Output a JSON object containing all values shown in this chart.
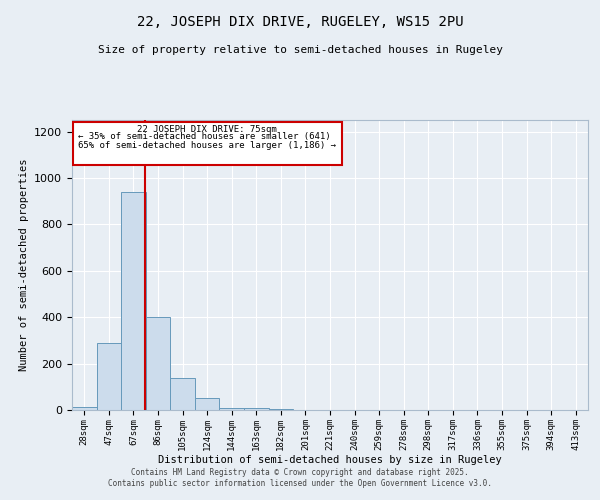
{
  "title_line1": "22, JOSEPH DIX DRIVE, RUGELEY, WS15 2PU",
  "title_line2": "Size of property relative to semi-detached houses in Rugeley",
  "xlabel": "Distribution of semi-detached houses by size in Rugeley",
  "ylabel": "Number of semi-detached properties",
  "bin_labels": [
    "28sqm",
    "47sqm",
    "67sqm",
    "86sqm",
    "105sqm",
    "124sqm",
    "144sqm",
    "163sqm",
    "182sqm",
    "201sqm",
    "221sqm",
    "240sqm",
    "259sqm",
    "278sqm",
    "298sqm",
    "317sqm",
    "336sqm",
    "355sqm",
    "375sqm",
    "394sqm",
    "413sqm"
  ],
  "bin_edges": [
    18.5,
    37.5,
    56.5,
    75.5,
    94.5,
    113.5,
    132.5,
    151.5,
    170.5,
    189.5,
    208.5,
    227.5,
    246.5,
    265.5,
    284.5,
    303.5,
    322.5,
    341.5,
    360.5,
    379.5,
    398.5,
    417.5
  ],
  "bar_heights": [
    15,
    290,
    940,
    400,
    140,
    50,
    10,
    10,
    5,
    2,
    2,
    1,
    1,
    0,
    1,
    0,
    0,
    0,
    0,
    0,
    0
  ],
  "bar_color": "#ccdcec",
  "bar_edge_color": "#6699bb",
  "property_line_x": 75,
  "property_line_color": "#cc0000",
  "annotation_title": "22 JOSEPH DIX DRIVE: 75sqm",
  "annotation_line2": "← 35% of semi-detached houses are smaller (641)",
  "annotation_line3": "65% of semi-detached houses are larger (1,186) →",
  "annotation_box_color": "#cc0000",
  "ylim": [
    0,
    1250
  ],
  "yticks": [
    0,
    200,
    400,
    600,
    800,
    1000,
    1200
  ],
  "background_color": "#e8eef4",
  "grid_color": "#ffffff",
  "footer_line1": "Contains HM Land Registry data © Crown copyright and database right 2025.",
  "footer_line2": "Contains public sector information licensed under the Open Government Licence v3.0."
}
